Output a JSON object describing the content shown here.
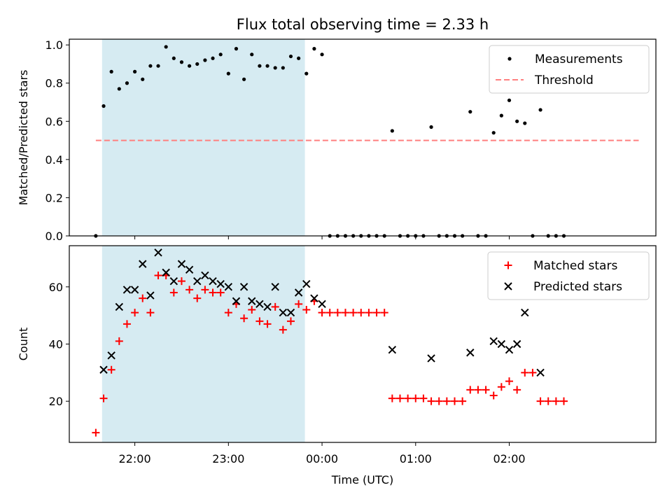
{
  "chart_data": [
    {
      "type": "scatter",
      "title": "Flux total observing time = 2.33 h",
      "xlabel": "",
      "ylabel": "Matched/Predicted stars",
      "ylim": [
        0.0,
        1.03
      ],
      "yticks": [
        "0.0",
        "0.2",
        "0.4",
        "0.6",
        "0.8",
        "1.0"
      ],
      "xlim": [
        "21:18",
        "03:34"
      ],
      "shaded_region": {
        "from": "21:39",
        "to": "23:49",
        "color": "#add8e6"
      },
      "legend_position": "top-right",
      "threshold": {
        "name": "Threshold",
        "y": 0.5,
        "from": "21:35",
        "to": "03:23",
        "color": "#ff7f7f"
      },
      "series": [
        {
          "name": "Measurements",
          "color": "#000000",
          "points": [
            [
              "21:35",
              0.0
            ],
            [
              "21:40",
              0.68
            ],
            [
              "21:45",
              0.86
            ],
            [
              "21:50",
              0.77
            ],
            [
              "21:55",
              0.8
            ],
            [
              "22:00",
              0.86
            ],
            [
              "22:05",
              0.82
            ],
            [
              "22:10",
              0.89
            ],
            [
              "22:15",
              0.89
            ],
            [
              "22:20",
              0.99
            ],
            [
              "22:25",
              0.93
            ],
            [
              "22:30",
              0.91
            ],
            [
              "22:35",
              0.89
            ],
            [
              "22:40",
              0.9
            ],
            [
              "22:45",
              0.92
            ],
            [
              "22:50",
              0.93
            ],
            [
              "22:55",
              0.95
            ],
            [
              "23:00",
              0.85
            ],
            [
              "23:05",
              0.98
            ],
            [
              "23:10",
              0.82
            ],
            [
              "23:15",
              0.95
            ],
            [
              "23:20",
              0.89
            ],
            [
              "23:25",
              0.89
            ],
            [
              "23:30",
              0.88
            ],
            [
              "23:35",
              0.88
            ],
            [
              "23:40",
              0.94
            ],
            [
              "23:45",
              0.93
            ],
            [
              "23:50",
              0.85
            ],
            [
              "23:55",
              0.98
            ],
            [
              "00:00",
              0.95
            ],
            [
              "00:05",
              0.0
            ],
            [
              "00:10",
              0.0
            ],
            [
              "00:15",
              0.0
            ],
            [
              "00:20",
              0.0
            ],
            [
              "00:25",
              0.0
            ],
            [
              "00:30",
              0.0
            ],
            [
              "00:35",
              0.0
            ],
            [
              "00:40",
              0.0
            ],
            [
              "00:45",
              0.55
            ],
            [
              "00:50",
              0.0
            ],
            [
              "00:55",
              0.0
            ],
            [
              "01:00",
              0.0
            ],
            [
              "01:05",
              0.0
            ],
            [
              "01:10",
              0.57
            ],
            [
              "01:15",
              0.0
            ],
            [
              "01:20",
              0.0
            ],
            [
              "01:25",
              0.0
            ],
            [
              "01:30",
              0.0
            ],
            [
              "01:35",
              0.65
            ],
            [
              "01:40",
              0.0
            ],
            [
              "01:45",
              0.0
            ],
            [
              "01:50",
              0.54
            ],
            [
              "01:55",
              0.63
            ],
            [
              "02:00",
              0.71
            ],
            [
              "02:05",
              0.6
            ],
            [
              "02:10",
              0.59
            ],
            [
              "02:15",
              0.0
            ],
            [
              "02:20",
              0.66
            ],
            [
              "02:25",
              0.0
            ],
            [
              "02:30",
              0.0
            ],
            [
              "02:35",
              0.0
            ]
          ]
        }
      ]
    },
    {
      "type": "scatter",
      "title": "",
      "xlabel": "Time (UTC)",
      "ylabel": "Count",
      "ylim": [
        5.6,
        74.4
      ],
      "yticks": [
        "20",
        "40",
        "60"
      ],
      "xlim": [
        "21:18",
        "03:34"
      ],
      "xticks": [
        "22:00",
        "23:00",
        "00:00",
        "01:00",
        "02:00"
      ],
      "shaded_region": {
        "from": "21:39",
        "to": "23:49",
        "color": "#add8e6"
      },
      "legend_position": "top-right",
      "series": [
        {
          "name": "Matched stars",
          "marker": "plus",
          "color": "#ff0000",
          "points": [
            [
              "21:35",
              9
            ],
            [
              "21:40",
              21
            ],
            [
              "21:45",
              31
            ],
            [
              "21:50",
              41
            ],
            [
              "21:55",
              47
            ],
            [
              "22:00",
              51
            ],
            [
              "22:05",
              56
            ],
            [
              "22:10",
              51
            ],
            [
              "22:15",
              64
            ],
            [
              "22:20",
              64
            ],
            [
              "22:25",
              58
            ],
            [
              "22:30",
              62
            ],
            [
              "22:35",
              59
            ],
            [
              "22:40",
              56
            ],
            [
              "22:45",
              59
            ],
            [
              "22:50",
              58
            ],
            [
              "22:55",
              58
            ],
            [
              "23:00",
              51
            ],
            [
              "23:05",
              54
            ],
            [
              "23:10",
              49
            ],
            [
              "23:15",
              52
            ],
            [
              "23:20",
              48
            ],
            [
              "23:25",
              47
            ],
            [
              "23:30",
              53
            ],
            [
              "23:35",
              45
            ],
            [
              "23:40",
              48
            ],
            [
              "23:45",
              54
            ],
            [
              "23:50",
              52
            ],
            [
              "23:55",
              55
            ],
            [
              "00:00",
              51
            ],
            [
              "00:05",
              51
            ],
            [
              "00:10",
              51
            ],
            [
              "00:15",
              51
            ],
            [
              "00:20",
              51
            ],
            [
              "00:25",
              51
            ],
            [
              "00:30",
              51
            ],
            [
              "00:35",
              51
            ],
            [
              "00:40",
              51
            ],
            [
              "00:45",
              21
            ],
            [
              "00:50",
              21
            ],
            [
              "00:55",
              21
            ],
            [
              "01:00",
              21
            ],
            [
              "01:05",
              21
            ],
            [
              "01:10",
              20
            ],
            [
              "01:15",
              20
            ],
            [
              "01:20",
              20
            ],
            [
              "01:25",
              20
            ],
            [
              "01:30",
              20
            ],
            [
              "01:35",
              24
            ],
            [
              "01:40",
              24
            ],
            [
              "01:45",
              24
            ],
            [
              "01:50",
              22
            ],
            [
              "01:55",
              25
            ],
            [
              "02:00",
              27
            ],
            [
              "02:05",
              24
            ],
            [
              "02:10",
              30
            ],
            [
              "02:15",
              30
            ],
            [
              "02:20",
              20
            ],
            [
              "02:25",
              20
            ],
            [
              "02:30",
              20
            ],
            [
              "02:35",
              20
            ]
          ]
        },
        {
          "name": "Predicted stars",
          "marker": "x",
          "color": "#000000",
          "points": [
            [
              "21:40",
              31
            ],
            [
              "21:45",
              36
            ],
            [
              "21:50",
              53
            ],
            [
              "21:55",
              59
            ],
            [
              "22:00",
              59
            ],
            [
              "22:05",
              68
            ],
            [
              "22:10",
              57
            ],
            [
              "22:15",
              72
            ],
            [
              "22:20",
              65
            ],
            [
              "22:25",
              62
            ],
            [
              "22:30",
              68
            ],
            [
              "22:35",
              66
            ],
            [
              "22:40",
              62
            ],
            [
              "22:45",
              64
            ],
            [
              "22:50",
              62
            ],
            [
              "22:55",
              61
            ],
            [
              "23:00",
              60
            ],
            [
              "23:05",
              55
            ],
            [
              "23:10",
              60
            ],
            [
              "23:15",
              55
            ],
            [
              "23:20",
              54
            ],
            [
              "23:25",
              53
            ],
            [
              "23:30",
              60
            ],
            [
              "23:35",
              51
            ],
            [
              "23:40",
              51
            ],
            [
              "23:45",
              58
            ],
            [
              "23:50",
              61
            ],
            [
              "23:55",
              56
            ],
            [
              "00:00",
              54
            ],
            [
              "00:45",
              38
            ],
            [
              "01:10",
              35
            ],
            [
              "01:35",
              37
            ],
            [
              "01:50",
              41
            ],
            [
              "01:55",
              40
            ],
            [
              "02:00",
              38
            ],
            [
              "02:05",
              40
            ],
            [
              "02:10",
              51
            ],
            [
              "02:20",
              30
            ]
          ]
        }
      ]
    }
  ]
}
